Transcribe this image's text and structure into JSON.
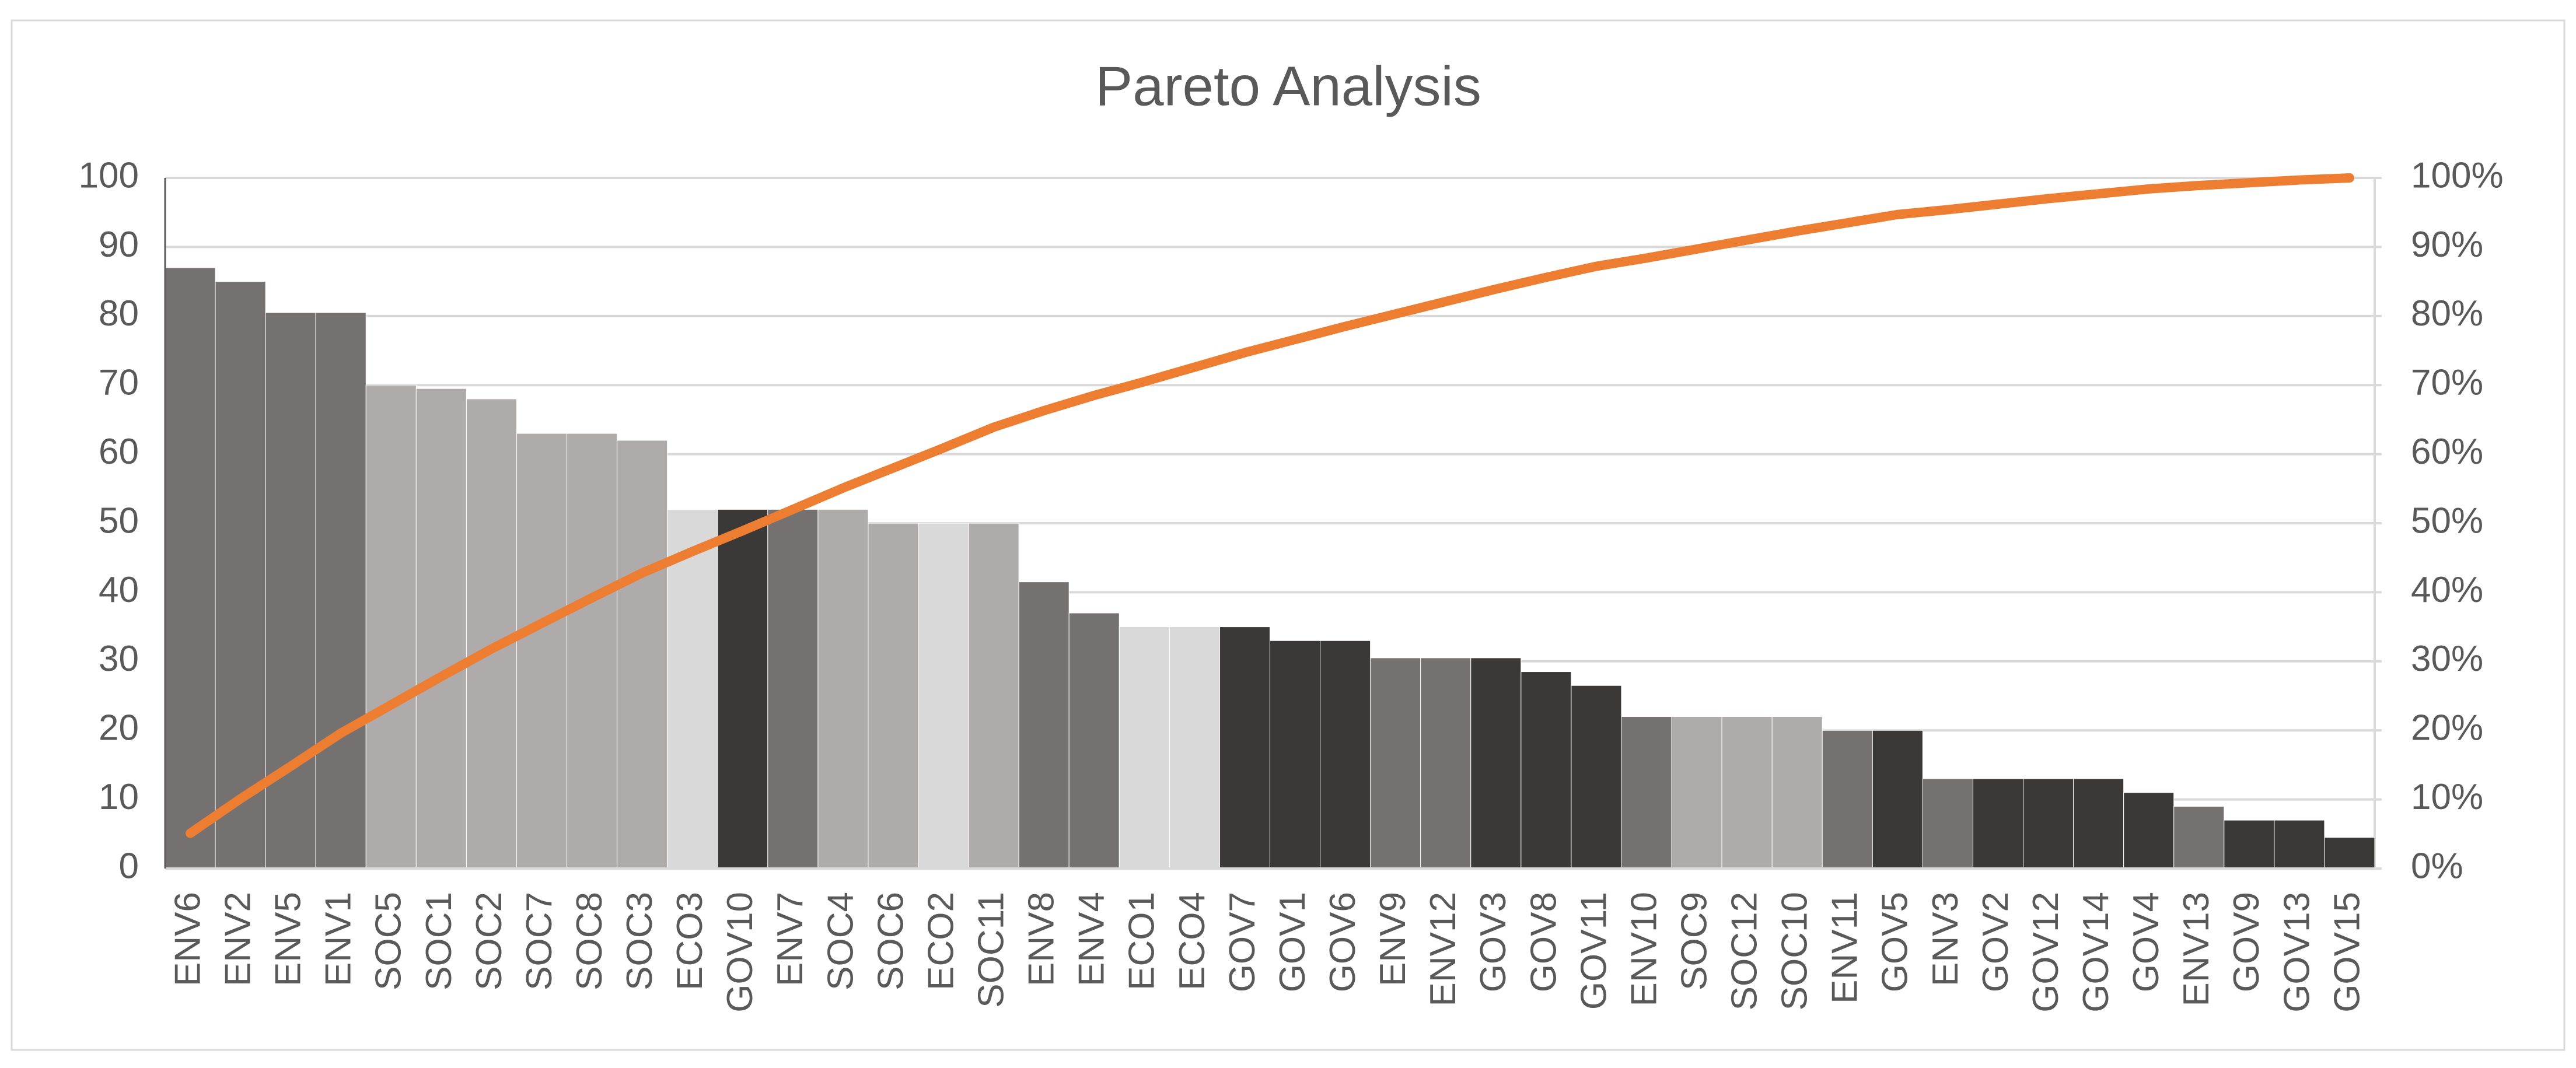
{
  "chart_data": {
    "type": "pareto",
    "title": "Pareto Analysis",
    "categories": [
      "ENV6",
      "ENV2",
      "ENV5",
      "ENV1",
      "SOC5",
      "SOC1",
      "SOC2",
      "SOC7",
      "SOC8",
      "SOC3",
      "ECO3",
      "GOV10",
      "ENV7",
      "SOC4",
      "SOC6",
      "ECO2",
      "SOC11",
      "ENV8",
      "ENV4",
      "ECO1",
      "ECO4",
      "GOV7",
      "GOV1",
      "GOV6",
      "ENV9",
      "ENV12",
      "GOV3",
      "GOV8",
      "GOV11",
      "ENV10",
      "SOC9",
      "SOC12",
      "SOC10",
      "ENV11",
      "GOV5",
      "ENV3",
      "GOV2",
      "GOV12",
      "GOV14",
      "GOV4",
      "ENV13",
      "GOV9",
      "GOV13",
      "GOV15"
    ],
    "series": [
      {
        "type": "bar",
        "values": [
          87,
          85,
          80.5,
          80.5,
          70,
          69.5,
          68,
          63,
          63,
          62,
          52,
          52,
          52,
          52,
          50,
          50,
          50,
          41.5,
          37,
          35,
          35,
          35,
          33,
          33,
          30.5,
          30.5,
          30.5,
          28.5,
          26.5,
          22,
          22,
          22,
          22,
          20,
          20,
          13,
          13,
          13,
          13,
          11,
          9,
          7,
          7,
          4.5
        ],
        "colors": [
          "#767171",
          "#767171",
          "#767171",
          "#767171",
          "#afabab",
          "#afabab",
          "#afabab",
          "#afabab",
          "#afabab",
          "#afabab",
          "#d9d9d9",
          "#3b3838",
          "#767171",
          "#afabab",
          "#afabab",
          "#d9d9d9",
          "#afabab",
          "#767171",
          "#767171",
          "#d9d9d9",
          "#d9d9d9",
          "#3b3838",
          "#3b3838",
          "#3b3838",
          "#767171",
          "#767171",
          "#3b3838",
          "#3b3838",
          "#3b3838",
          "#767171",
          "#afabab",
          "#afabab",
          "#afabab",
          "#767171",
          "#3b3838",
          "#767171",
          "#3b3838",
          "#3b3838",
          "#3b3838",
          "#3b3838",
          "#767171",
          "#3b3838",
          "#3b3838",
          "#3b3838"
        ]
      },
      {
        "type": "line",
        "axis": "y2",
        "color": "#ed7d31",
        "values": [
          5.1,
          10.1,
          14.8,
          19.6,
          23.7,
          27.8,
          31.8,
          35.5,
          39.2,
          42.8,
          45.9,
          48.9,
          52.0,
          55.1,
          58.0,
          60.9,
          63.9,
          66.3,
          68.5,
          70.5,
          72.6,
          74.7,
          76.6,
          78.5,
          80.3,
          82.1,
          83.9,
          85.6,
          87.2,
          88.4,
          89.7,
          91.0,
          92.3,
          93.5,
          94.7,
          95.4,
          96.2,
          97.0,
          97.7,
          98.4,
          98.9,
          99.3,
          99.7,
          100
        ]
      }
    ],
    "ylim": [
      0,
      100
    ],
    "yticks": [
      0,
      10,
      20,
      30,
      40,
      50,
      60,
      70,
      80,
      90,
      100
    ],
    "y2lim": [
      0,
      100
    ],
    "y2ticks": [
      {
        "value": 0,
        "label": "0%"
      },
      {
        "value": 10,
        "label": "10%"
      },
      {
        "value": 20,
        "label": "20%"
      },
      {
        "value": 30,
        "label": "30%"
      },
      {
        "value": 40,
        "label": "40%"
      },
      {
        "value": 50,
        "label": "50%"
      },
      {
        "value": 60,
        "label": "60%"
      },
      {
        "value": 70,
        "label": "70%"
      },
      {
        "value": 80,
        "label": "80%"
      },
      {
        "value": 90,
        "label": "90%"
      },
      {
        "value": 100,
        "label": "100%"
      }
    ],
    "grid": true
  }
}
